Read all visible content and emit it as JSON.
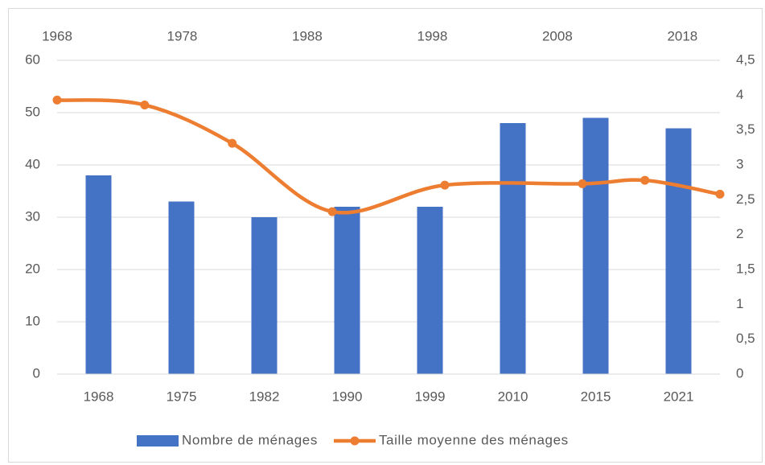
{
  "chart_data": {
    "type": "bar",
    "categories": [
      "1968",
      "1975",
      "1982",
      "1990",
      "1999",
      "2010",
      "2015",
      "2021"
    ],
    "series": [
      {
        "name": "Nombre de ménages",
        "type": "bar",
        "color": "#4472c4",
        "values": [
          38,
          33,
          30,
          32,
          32,
          48,
          49,
          47
        ]
      },
      {
        "name": "Taille moyenne des ménages",
        "type": "line",
        "axis": "y2",
        "color": "#ed7d31",
        "x": [
          1968,
          1975,
          1982,
          1990,
          1999,
          2010,
          2015,
          2021
        ],
        "values": [
          3.93,
          3.86,
          3.31,
          2.33,
          2.71,
          2.73,
          2.78,
          2.58
        ]
      }
    ],
    "ylim": [
      0,
      60
    ],
    "yticks": [
      0,
      10,
      20,
      30,
      40,
      50,
      60
    ],
    "y2lim": [
      0,
      4.5
    ],
    "y2ticks": [
      0,
      {
        "value": 0.5,
        "label": "0,5"
      },
      1,
      {
        "value": 1.5,
        "label": "1,5"
      },
      2,
      {
        "value": 2.5,
        "label": "2,5"
      },
      3,
      {
        "value": 3.5,
        "label": "3,5"
      },
      4,
      {
        "value": 4.5,
        "label": "4,5"
      }
    ],
    "x2lim": [
      1968,
      2021
    ],
    "x2ticks": [
      1968,
      1978,
      1988,
      1998,
      2008,
      2018
    ],
    "grid": true,
    "legend": "bottom"
  }
}
